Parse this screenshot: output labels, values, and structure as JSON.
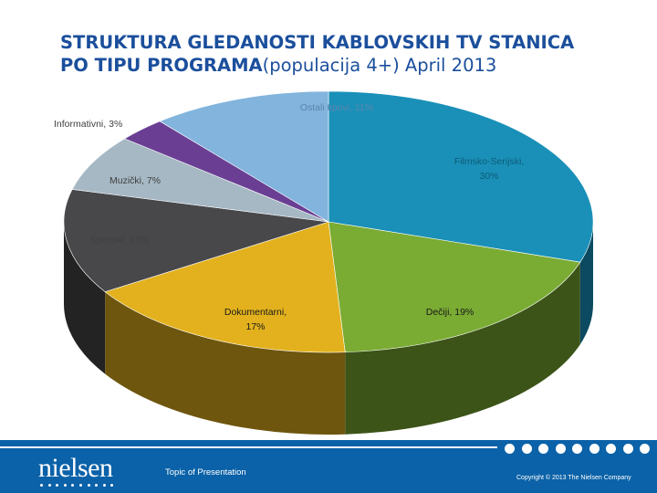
{
  "title": {
    "line1": "STRUKTURA GLEDANOSTI KABLOVSKIH TV STANICA",
    "line2_bold": "PO TIPU PROGRAMA",
    "line2_light": "(populacija 4+) April 2013"
  },
  "chart_data": {
    "type": "pie",
    "title": "STRUKTURA GLEDANOSTI KABLOVSKIH TV STANICA PO TIPU PROGRAMA (populacija 4+) April 2013",
    "style": "3d",
    "slices": [
      {
        "label": "Filmsko-Serijski",
        "value": 30,
        "text": "Filmsko-Serijski, 30%",
        "color": "#1a90b8",
        "side_color": "#0b4a60",
        "label_color": "#0e5c78"
      },
      {
        "label": "Dečiji",
        "value": 19,
        "text": "Dečiji, 19%",
        "color": "#7aab33",
        "side_color": "#3c5418",
        "label_color": "#1a1a1a"
      },
      {
        "label": "Dokumentarni",
        "value": 17,
        "text": "Dokumentarni, 17%",
        "color": "#e2b11d",
        "side_color": "#6e560e",
        "label_color": "#1a1a1a"
      },
      {
        "label": "Sportski",
        "value": 13,
        "text": "Sportski, 13%",
        "color": "#48484a",
        "side_color": "#232323",
        "label_color": "#404040"
      },
      {
        "label": "Muzički",
        "value": 7,
        "text": "Muzički, 7%",
        "color": "#a6b8c4",
        "side_color": "#55626b",
        "label_color": "#404040"
      },
      {
        "label": "Informativni",
        "value": 3,
        "text": "Informativni, 3%",
        "color": "#6a3f93",
        "side_color": "#33204a",
        "label_color": "#404040"
      },
      {
        "label": "Ostali tipovi",
        "value": 11,
        "text": "Ostali tipovi, 11%",
        "color": "#82b4dd",
        "side_color": "#3d5a73",
        "label_color": "#5b85ad"
      }
    ]
  },
  "footer": {
    "logo": "nielsen",
    "topic": "Topic of Presentation",
    "copyright": "Copyright © 2013 The Nielsen Company"
  },
  "colors": {
    "title": "#1b4f9c",
    "footer": "#0b62a8"
  }
}
